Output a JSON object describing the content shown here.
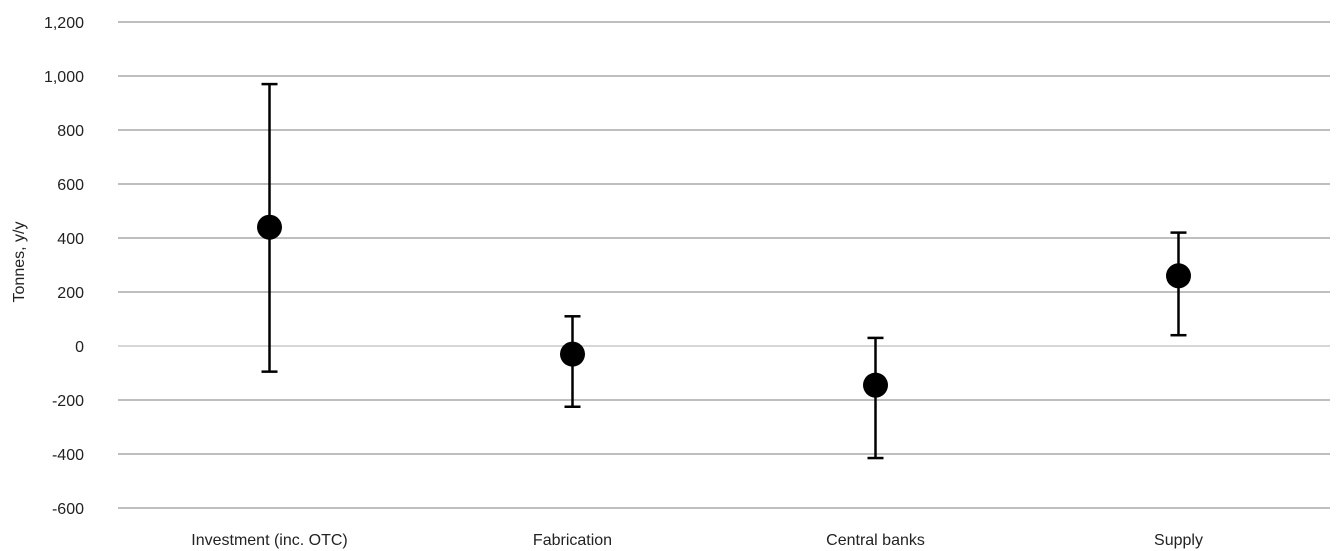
{
  "chart_data": {
    "type": "scatter",
    "title": "",
    "xlabel": "",
    "ylabel": "Tonnes, y/y",
    "ylim": [
      -600,
      1200
    ],
    "y_ticks": [
      1200,
      1000,
      800,
      600,
      400,
      200,
      0,
      -200,
      -400,
      -600
    ],
    "y_tick_labels": [
      "1,200",
      "1,000",
      "800",
      "600",
      "400",
      "200",
      "0",
      "-200",
      "-400",
      "-600"
    ],
    "categories": [
      "Investment (inc. OTC)",
      "Fabrication",
      "Central banks",
      "Supply"
    ],
    "points": [
      {
        "category": "Investment (inc. OTC)",
        "value": 440,
        "low": -95,
        "high": 970
      },
      {
        "category": "Fabrication",
        "value": -30,
        "low": -225,
        "high": 110
      },
      {
        "category": "Central banks",
        "value": -145,
        "low": -415,
        "high": 30
      },
      {
        "category": "Supply",
        "value": 260,
        "low": 40,
        "high": 420
      }
    ],
    "grid": true,
    "legend": "none",
    "colors": {
      "marker": "#000000",
      "grid": "#bfbfbf",
      "errorbar": "#000000"
    }
  }
}
